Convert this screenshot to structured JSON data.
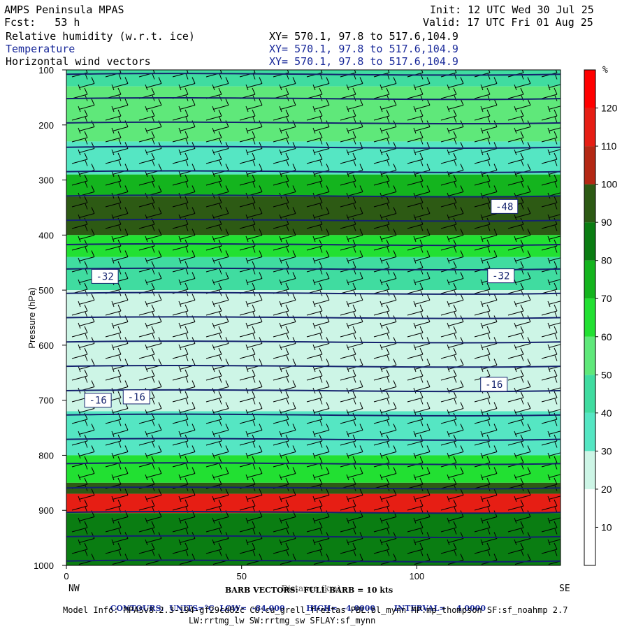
{
  "header": {
    "title": "AMPS Peninsula MPAS",
    "fcst": "Fcst:   53 h",
    "init": "Init: 12 UTC Wed 30 Jul 25",
    "valid": "Valid: 17 UTC Fri 01 Aug 25",
    "fields": [
      {
        "name": "Relative humidity (w.r.t. ice)",
        "xy": "XY= 570.1, 97.8 to 517.6,104.9"
      },
      {
        "name": "Temperature",
        "xy": "XY= 570.1, 97.8 to 517.6,104.9"
      },
      {
        "name": "Horizontal wind vectors",
        "xy": "XY= 570.1, 97.8 to 517.6,104.9"
      }
    ]
  },
  "chart_data": {
    "type": "heatmap",
    "ylabel": "Pressure (hPa)",
    "xlabel": "Distance (km)",
    "x_ticks": [
      0,
      50,
      100
    ],
    "y_ticks": [
      100,
      200,
      300,
      400,
      500,
      600,
      700,
      800,
      900,
      1000
    ],
    "xlim": [
      0,
      141
    ],
    "ylim": [
      1000,
      100
    ],
    "x_end_labels": {
      "left": "NW",
      "right": "SE"
    },
    "colorbar": {
      "unit": "%",
      "levels": [
        10,
        20,
        30,
        40,
        50,
        60,
        70,
        80,
        90,
        100,
        110,
        120
      ],
      "colors": [
        "#ffffff",
        "#ffffff",
        "#cdf5e6",
        "#55e6c3",
        "#40dca0",
        "#5fe87a",
        "#22e032",
        "#14b41e",
        "#0a7d12",
        "#2d5a14",
        "#b42814",
        "#e61e14",
        "#ff0000"
      ]
    },
    "rh_layers": [
      {
        "p_top": 100,
        "p_bot": 130,
        "value": 45
      },
      {
        "p_top": 130,
        "p_bot": 230,
        "value": 55
      },
      {
        "p_top": 230,
        "p_bot": 290,
        "value": 35
      },
      {
        "p_top": 290,
        "p_bot": 330,
        "value": 75
      },
      {
        "p_top": 330,
        "p_bot": 400,
        "value": 95
      },
      {
        "p_top": 400,
        "p_bot": 440,
        "value": 65
      },
      {
        "p_top": 440,
        "p_bot": 500,
        "value": 45
      },
      {
        "p_top": 500,
        "p_bot": 720,
        "value": 25
      },
      {
        "p_top": 720,
        "p_bot": 800,
        "value": 35
      },
      {
        "p_top": 800,
        "p_bot": 850,
        "value": 65
      },
      {
        "p_top": 850,
        "p_bot": 870,
        "value": 95
      },
      {
        "p_top": 870,
        "p_bot": 905,
        "value": 115
      },
      {
        "p_top": 905,
        "p_bot": 1000,
        "value": 85
      }
    ],
    "temperature_contours": {
      "units": "°C",
      "levels": [
        -84,
        -80,
        -76,
        -72,
        -68,
        -64,
        -60,
        -56,
        -52,
        -48,
        -44,
        -40,
        -36,
        -32,
        -28,
        -24,
        -20,
        -16,
        -12,
        -8,
        -4
      ],
      "labels": [
        {
          "value": "-48",
          "x": 125,
          "p": 348
        },
        {
          "value": "-32",
          "x": 11,
          "p": 475
        },
        {
          "value": "-32",
          "x": 124,
          "p": 474
        },
        {
          "value": "-16",
          "x": 9,
          "p": 700
        },
        {
          "value": "-16",
          "x": 20,
          "p": 694
        },
        {
          "value": "-16",
          "x": 122,
          "p": 671
        }
      ]
    }
  },
  "footer": {
    "barb_line": "BARB VECTORS:  FULL BARB = 10 kts",
    "contours": {
      "label": "CONTOURS:",
      "units": "UNITS=°C",
      "low": "LOW=  -84.000",
      "high": "HIGH=  -4.0000",
      "interval": "INTERVAL=    4.0000"
    },
    "model_info": "Model Info: MPASv8.2.3-194-gf29cd82c CU:cu_grell_freitas PBL:bl_mynn MP:mp_thompson SF:sf_noahmp 2.7",
    "model_info2": "LW:rrtmg_lw SW:rrtmg_sw SFLAY:sf_mynn"
  }
}
